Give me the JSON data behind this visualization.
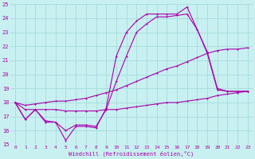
{
  "xlabel": "Windchill (Refroidissement éolien,°C)",
  "bg_color": "#c8f0f0",
  "grid_color": "#aadddd",
  "line_color": "#aa00aa",
  "xlim": [
    -0.5,
    23.5
  ],
  "ylim": [
    15,
    25
  ],
  "yticks": [
    15,
    16,
    17,
    18,
    19,
    20,
    21,
    22,
    23,
    24,
    25
  ],
  "xticks": [
    0,
    1,
    2,
    3,
    4,
    5,
    6,
    7,
    8,
    9,
    10,
    11,
    12,
    13,
    14,
    15,
    16,
    17,
    18,
    19,
    20,
    21,
    22,
    23
  ],
  "series": [
    {
      "x": [
        0,
        1,
        2,
        3,
        4,
        5,
        6,
        7,
        8,
        9,
        10,
        11,
        12,
        13,
        14,
        15,
        16,
        17,
        18,
        19,
        20,
        21,
        22,
        23
      ],
      "y": [
        18.0,
        16.8,
        17.5,
        16.6,
        16.6,
        15.3,
        16.3,
        16.3,
        16.2,
        17.6,
        21.3,
        23.0,
        23.8,
        24.3,
        24.3,
        24.3,
        24.3,
        24.8,
        23.2,
        21.6,
        19.0,
        18.8,
        18.8,
        18.8
      ]
    },
    {
      "x": [
        0,
        1,
        2,
        3,
        4,
        5,
        6,
        7,
        8,
        9,
        10,
        11,
        12,
        13,
        14,
        15,
        16,
        17,
        18,
        19,
        20,
        21,
        22,
        23
      ],
      "y": [
        18.0,
        17.8,
        17.9,
        18.0,
        18.1,
        18.1,
        18.2,
        18.3,
        18.5,
        18.7,
        18.9,
        19.2,
        19.5,
        19.8,
        20.1,
        20.4,
        20.6,
        20.9,
        21.2,
        21.5,
        21.7,
        21.8,
        21.8,
        21.9
      ]
    },
    {
      "x": [
        0,
        1,
        2,
        3,
        4,
        5,
        6,
        7,
        8,
        9,
        10,
        11,
        12,
        13,
        14,
        15,
        16,
        17,
        18,
        19,
        20,
        21,
        22,
        23
      ],
      "y": [
        18.0,
        17.5,
        17.5,
        17.5,
        17.5,
        17.4,
        17.4,
        17.4,
        17.4,
        17.5,
        17.5,
        17.6,
        17.7,
        17.8,
        17.9,
        18.0,
        18.0,
        18.1,
        18.2,
        18.3,
        18.5,
        18.6,
        18.7,
        18.8
      ]
    },
    {
      "x": [
        0,
        1,
        2,
        3,
        4,
        5,
        6,
        7,
        8,
        9,
        10,
        11,
        12,
        13,
        14,
        15,
        16,
        17,
        18,
        19,
        20,
        21,
        22,
        23
      ],
      "y": [
        18.0,
        16.8,
        17.5,
        16.7,
        16.6,
        16.0,
        16.4,
        16.4,
        16.3,
        17.5,
        19.5,
        21.3,
        23.0,
        23.6,
        24.1,
        24.1,
        24.2,
        24.3,
        23.2,
        21.5,
        18.9,
        18.8,
        18.8,
        18.8
      ]
    }
  ]
}
